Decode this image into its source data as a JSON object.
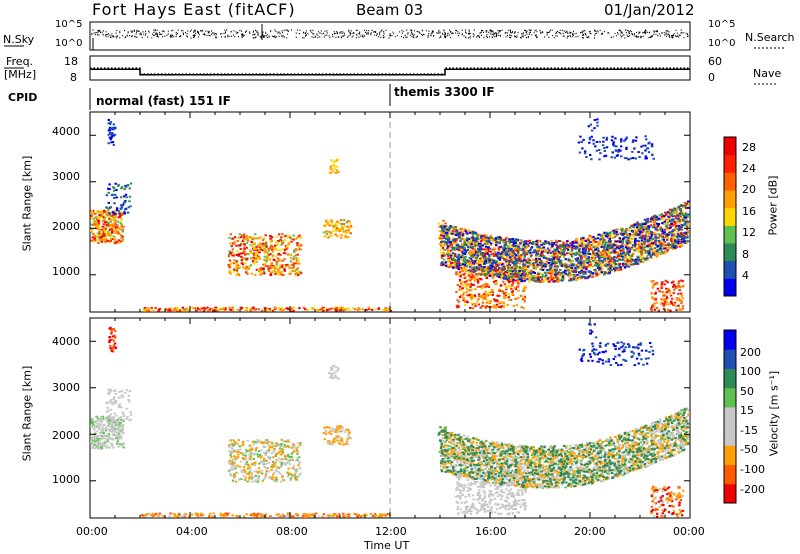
{
  "header": {
    "station": "Fort Hays East (fitACF)",
    "beam": "Beam 03",
    "date": "01/Jan/2012"
  },
  "left_labels": {
    "nsky": "N.Sky",
    "freq": "Freq.",
    "freq_unit": "[MHz]",
    "cpid": "CPID"
  },
  "right_labels": {
    "nsearch": "N.Search",
    "nave": "Nave"
  },
  "nsky_ticks": [
    "10^5",
    "10^0"
  ],
  "nsearch_ticks": [
    "10^5",
    "10^0"
  ],
  "freq_ticks": [
    "18",
    "8"
  ],
  "nave_ticks": [
    "60",
    "0"
  ],
  "cpid_modes": [
    {
      "label": "normal (fast) 151 IF",
      "start_hour": 0
    },
    {
      "label": "themis 3300 IF",
      "start_hour": 12
    }
  ],
  "colors": {
    "power_scale": [
      "#0000ee",
      "#1e50b4",
      "#2e8b57",
      "#5fbf4f",
      "#ffd700",
      "#ffa000",
      "#ff6000",
      "#ff2000",
      "#ee0000"
    ],
    "velocity_scale": [
      "#ee0000",
      "#ff5a00",
      "#ffa000",
      "#c8c8c8",
      "#c8c8c8",
      "#5fbf4f",
      "#2e8b57",
      "#1e50b4",
      "#0000ee"
    ]
  },
  "chart_data": [
    {
      "type": "line",
      "name_panel": "frequency",
      "x": [
        0,
        2,
        2,
        14.2,
        14.2,
        24
      ],
      "frequency": [
        12.5,
        12.5,
        10.2,
        10.2,
        12.5,
        12.5
      ],
      "frequency_ylim": [
        8,
        18
      ],
      "nave": [
        30,
        30,
        15,
        15,
        30,
        30
      ],
      "nave_ylim": [
        0,
        60
      ]
    },
    {
      "type": "heatmap",
      "name_panel": "power",
      "xlabel": "",
      "ylabel": "Slant Range [km]",
      "xlim": [
        0,
        24
      ],
      "ylim": [
        200,
        4500
      ],
      "y_ticks": [
        "1000",
        "2000",
        "3000",
        "4000"
      ],
      "colorbar_label": "Power [dB]",
      "colorbar_ticks": [
        "28",
        "24",
        "20",
        "16",
        "12",
        "8",
        "4"
      ],
      "colorbar_range": [
        0,
        32
      ]
    },
    {
      "type": "heatmap",
      "name_panel": "velocity",
      "xlabel": "Time UT",
      "ylabel": "Slant Range [km]",
      "xlim": [
        0,
        24
      ],
      "ylim": [
        200,
        4500
      ],
      "x_ticks": [
        "00:00",
        "04:00",
        "08:00",
        "12:00",
        "16:00",
        "20:00",
        "00:00"
      ],
      "y_ticks": [
        "1000",
        "2000",
        "3000",
        "4000"
      ],
      "colorbar_label": "Velocity [m s⁻¹]",
      "colorbar_ticks": [
        "200",
        "100",
        "50",
        "15",
        "-15",
        "-50",
        "-100",
        "-200"
      ]
    }
  ]
}
